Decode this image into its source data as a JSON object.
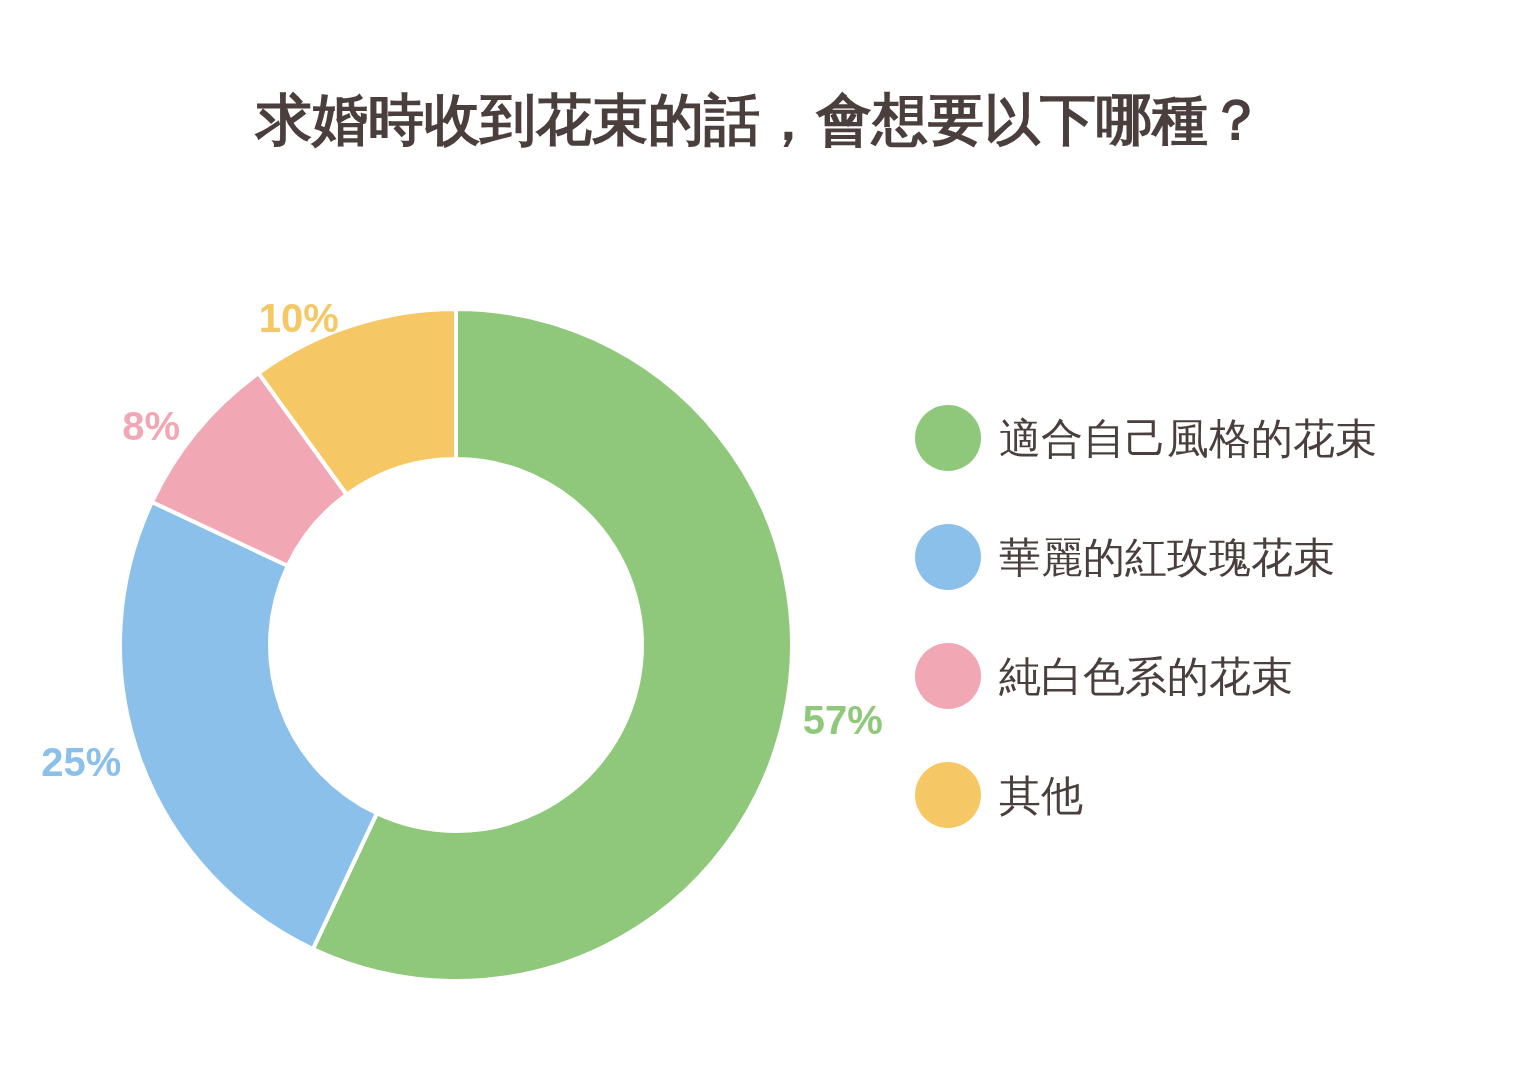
{
  "chart_data": {
    "type": "donut",
    "title": "求婚時收到花束的話，會想要以下哪種？",
    "categories": [
      "適合自己風格的花束",
      "華麗的紅玫瑰花束",
      "純白色系的花束",
      "其他"
    ],
    "values": [
      57,
      25,
      8,
      10
    ],
    "value_labels": [
      "57%",
      "25%",
      "8%",
      "10%"
    ],
    "colors": [
      "#8fc87a",
      "#8bc0ea",
      "#f2a7b4",
      "#f6c865"
    ],
    "legend": "right"
  }
}
